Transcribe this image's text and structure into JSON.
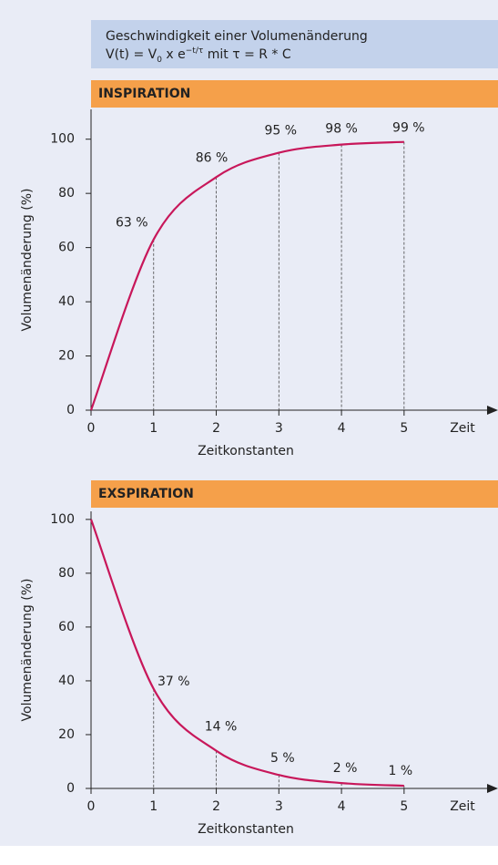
{
  "header": {
    "title": "Geschwindigkeit einer Volumenänderung",
    "formula": [
      "V(t) = V",
      "0",
      " x e",
      "−t/τ",
      " mit τ = R * C"
    ]
  },
  "chart_data": [
    {
      "type": "line",
      "title": "INSPIRATION",
      "xlabel": "Zeitkonstanten",
      "ylabel": "Volumenänderung (%)",
      "axis_end_label": "Zeit",
      "x": [
        0,
        1,
        2,
        3,
        4,
        5
      ],
      "values": [
        0,
        63,
        86,
        95,
        98,
        99
      ],
      "value_labels": [
        null,
        "63 %",
        "86 %",
        "95 %",
        "98 %",
        "99 %"
      ],
      "color": "#c8175a",
      "xlim": [
        0,
        6.5
      ],
      "ylim": [
        0,
        111
      ],
      "xticks": [
        0,
        1,
        2,
        3,
        4,
        5
      ],
      "yticks": [
        0,
        20,
        40,
        60,
        80,
        100
      ]
    },
    {
      "type": "line",
      "title": "EXSPIRATION",
      "xlabel": "Zeitkonstanten",
      "ylabel": "Volumenänderung (%)",
      "axis_end_label": "Zeit",
      "x": [
        0,
        1,
        2,
        3,
        4,
        5
      ],
      "values": [
        100,
        37,
        14,
        5,
        2,
        1
      ],
      "value_labels": [
        null,
        "37 %",
        "14 %",
        "5 %",
        "2 %",
        "1 %"
      ],
      "color": "#c8175a",
      "xlim": [
        0,
        6.5
      ],
      "ylim": [
        0,
        103
      ],
      "xticks": [
        0,
        1,
        2,
        3,
        4,
        5
      ],
      "yticks": [
        0,
        20,
        40,
        60,
        80,
        100
      ]
    }
  ]
}
